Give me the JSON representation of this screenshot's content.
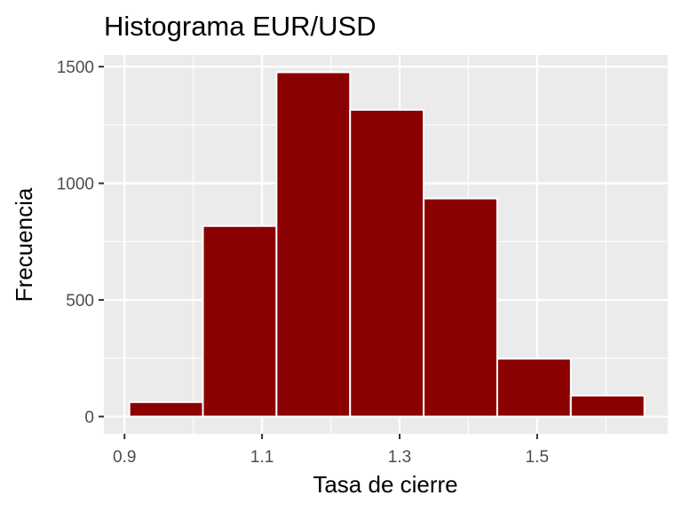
{
  "chart_data": {
    "type": "bar",
    "title": "Histograma EUR/USD",
    "xlabel": "Tasa de cierre",
    "ylabel": "Frecuencia",
    "bins": [
      {
        "x0": 0.907,
        "x1": 1.014,
        "count": 62
      },
      {
        "x0": 1.014,
        "x1": 1.121,
        "count": 817
      },
      {
        "x0": 1.121,
        "x1": 1.228,
        "count": 1476
      },
      {
        "x0": 1.228,
        "x1": 1.335,
        "count": 1315
      },
      {
        "x0": 1.335,
        "x1": 1.442,
        "count": 935
      },
      {
        "x0": 1.442,
        "x1": 1.549,
        "count": 248
      },
      {
        "x0": 1.549,
        "x1": 1.656,
        "count": 90
      }
    ],
    "xlim": [
      0.87,
      1.69
    ],
    "ylim": [
      -74,
      1550
    ],
    "x_ticks": [
      0.9,
      1.1,
      1.3,
      1.5
    ],
    "x_tick_labels": [
      "0.9",
      "1.1",
      "1.3",
      "1.5"
    ],
    "x_minor_ticks": [
      1.0,
      1.2,
      1.4,
      1.6
    ],
    "y_ticks": [
      0,
      500,
      1000,
      1500
    ],
    "y_tick_labels": [
      "0",
      "500",
      "1000",
      "1500"
    ],
    "y_minor_ticks": [
      250,
      750,
      1250
    ],
    "grid": true,
    "colors": {
      "bar_fill": "#8B0000",
      "bar_outline": "#ffffff",
      "panel_background": "#EBEBEB",
      "grid_line": "#ffffff",
      "tick_text": "#4d4d4d",
      "tick_mark": "#333333"
    }
  }
}
